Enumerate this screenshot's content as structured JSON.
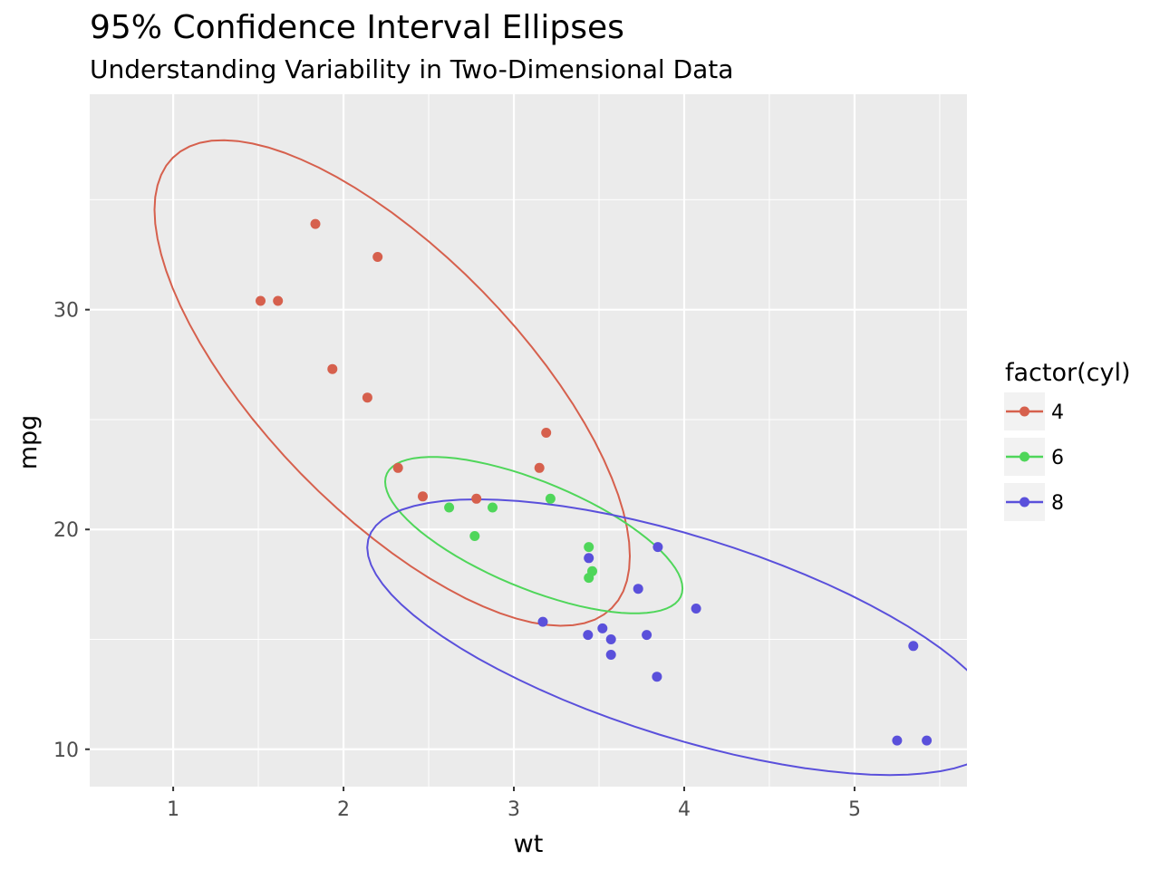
{
  "chart_data": {
    "type": "scatter",
    "title": "95% Confidence Interval Ellipses",
    "subtitle": "Understanding Variability in Two-Dimensional Data",
    "xlabel": "wt",
    "ylabel": "mpg",
    "xlim": [
      0.51,
      5.66
    ],
    "ylim": [
      8.3,
      39.8
    ],
    "x_ticks": [
      1,
      2,
      3,
      4,
      5
    ],
    "y_ticks": [
      10,
      20,
      30
    ],
    "grid": true,
    "legend": {
      "title": "factor(cyl)",
      "position": "right"
    },
    "series": [
      {
        "name": "4",
        "color": "#D6604D",
        "points": [
          [
            2.32,
            22.8
          ],
          [
            3.19,
            24.4
          ],
          [
            3.15,
            22.8
          ],
          [
            2.2,
            32.4
          ],
          [
            1.615,
            30.4
          ],
          [
            1.835,
            33.9
          ],
          [
            2.465,
            21.5
          ],
          [
            1.935,
            27.3
          ],
          [
            2.14,
            26.0
          ],
          [
            1.513,
            30.4
          ],
          [
            2.78,
            21.4
          ]
        ]
      },
      {
        "name": "6",
        "color": "#4FD65A",
        "points": [
          [
            2.62,
            21.0
          ],
          [
            2.875,
            21.0
          ],
          [
            3.215,
            21.4
          ],
          [
            3.46,
            18.1
          ],
          [
            3.44,
            19.2
          ],
          [
            3.44,
            17.8
          ],
          [
            2.77,
            19.7
          ]
        ]
      },
      {
        "name": "8",
        "color": "#5A50DB",
        "points": [
          [
            3.44,
            18.7
          ],
          [
            3.57,
            14.3
          ],
          [
            4.07,
            16.4
          ],
          [
            3.73,
            17.3
          ],
          [
            3.78,
            15.2
          ],
          [
            5.25,
            10.4
          ],
          [
            5.424,
            10.4
          ],
          [
            5.345,
            14.7
          ],
          [
            3.52,
            15.5
          ],
          [
            3.435,
            15.2
          ],
          [
            3.84,
            13.3
          ],
          [
            3.845,
            19.2
          ],
          [
            3.17,
            15.8
          ],
          [
            3.57,
            15.0
          ]
        ]
      }
    ],
    "ellipses": [
      {
        "series": "4",
        "center": [
          2.2857,
          26.6636
        ],
        "a": 2.1,
        "b": 0.4
      },
      {
        "series": "6",
        "center": [
          3.1171,
          19.7429
        ],
        "a": 1.15,
        "b": 0.36
      },
      {
        "series": "8",
        "center": [
          3.999,
          15.1
        ],
        "a": 1.55,
        "b": 0.5
      }
    ]
  }
}
